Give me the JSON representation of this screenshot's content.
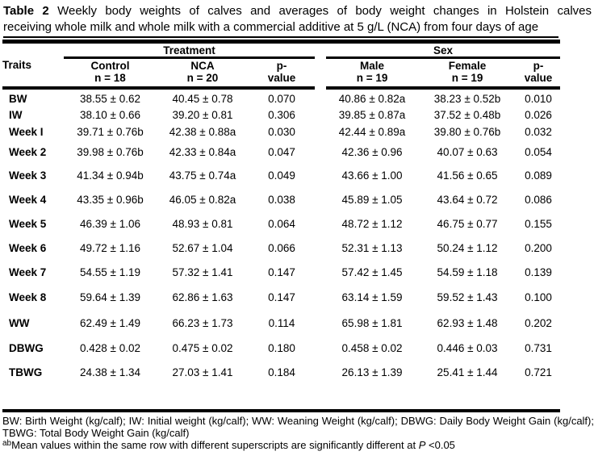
{
  "title": {
    "bold": "Table 2",
    "line1_rest": "Weekly body weights of calves and averages of body weight changes in Holstein calves",
    "line2": "receiving whole milk and whole milk with a commercial additive at 5 g/L (NCA) from four days of age"
  },
  "table": {
    "group_headers": {
      "traits": "Traits",
      "treatment": "Treatment",
      "sex": "Sex"
    },
    "columns": [
      {
        "label": "Control",
        "sub": "n = 18"
      },
      {
        "label": "NCA",
        "sub": "n = 20"
      },
      {
        "label": "p-",
        "sub": "value"
      },
      {
        "label": "Male",
        "sub": "n = 19"
      },
      {
        "label": "Female",
        "sub": "n = 19"
      },
      {
        "label": "p-",
        "sub": "value"
      }
    ],
    "rows": [
      {
        "trait": "BW",
        "control": "38.55 ± 0.62",
        "nca": "40.45 ± 0.78",
        "p1": "0.070",
        "male": "40.86 ± 0.82a",
        "female": "38.23 ± 0.52b",
        "p2": "0.010"
      },
      {
        "trait": "IW",
        "control": "38.10 ± 0.66",
        "nca": "39.20 ± 0.81",
        "p1": "0.306",
        "male": "39.85 ± 0.87a",
        "female": "37.52 ± 0.48b",
        "p2": "0.026"
      },
      {
        "trait": "Week I",
        "control": "39.71 ± 0.76b",
        "nca": "42.38 ± 0.88a",
        "p1": "0.030",
        "male": "42.44 ± 0.89a",
        "female": "39.80 ± 0.76b",
        "p2": "0.032"
      },
      {
        "trait": "Week 2",
        "control": "39.98 ± 0.76b",
        "nca": "42.33 ± 0.84a",
        "p1": "0.047",
        "male": "42.36 ± 0.96",
        "female": "40.07 ± 0.63",
        "p2": "0.054"
      },
      {
        "trait": "Week 3",
        "control": "41.34 ± 0.94b",
        "nca": "43.75 ± 0.74a",
        "p1": "0.049",
        "male": "43.66 ± 1.00",
        "female": "41.56 ± 0.65",
        "p2": "0.089"
      },
      {
        "trait": "Week 4",
        "control": "43.35 ± 0.96b",
        "nca": "46.05 ± 0.82a",
        "p1": "0.038",
        "male": "45.89 ± 1.05",
        "female": "43.64 ± 0.72",
        "p2": "0.086"
      },
      {
        "trait": "Week 5",
        "control": "46.39 ± 1.06",
        "nca": "48.93 ± 0.81",
        "p1": "0.064",
        "male": "48.72 ± 1.12",
        "female": "46.75 ± 0.77",
        "p2": "0.155"
      },
      {
        "trait": "Week 6",
        "control": "49.72 ± 1.16",
        "nca": "52.67 ± 1.04",
        "p1": "0.066",
        "male": "52.31 ± 1.13",
        "female": "50.24 ± 1.12",
        "p2": "0.200"
      },
      {
        "trait": "Week 7",
        "control": "54.55 ± 1.19",
        "nca": "57.32 ± 1.41",
        "p1": "0.147",
        "male": "57.42 ± 1.45",
        "female": "54.59 ± 1.18",
        "p2": "0.139"
      },
      {
        "trait": "Week 8",
        "control": "59.64 ± 1.39",
        "nca": "62.86 ± 1.63",
        "p1": "0.147",
        "male": "63.14 ± 1.59",
        "female": "59.52 ± 1.43",
        "p2": "0.100"
      },
      {
        "trait": "WW",
        "control": "62.49 ± 1.49",
        "nca": "66.23 ± 1.73",
        "p1": "0.114",
        "male": "65.98 ± 1.81",
        "female": "62.93 ± 1.48",
        "p2": "0.202"
      },
      {
        "trait": "DBWG",
        "control": "0.428 ± 0.02",
        "nca": "0.475 ± 0.02",
        "p1": "0.180",
        "male": "0.458 ± 0.02",
        "female": "0.446 ± 0.03",
        "p2": "0.731"
      },
      {
        "trait": "TBWG",
        "control": "24.38 ± 1.34",
        "nca": "27.03 ± 1.41",
        "p1": "0.184",
        "male": "26.13 ± 1.39",
        "female": "25.41 ± 1.44",
        "p2": "0.721"
      }
    ]
  },
  "footnotes": {
    "abbrev": "BW: Birth Weight (kg/calf); IW: Initial weight (kg/calf); WW: Weaning Weight (kg/calf); DBWG: Daily Body Weight Gain (kg/calf); TBWG: Total Body Weight Gain (kg/calf)",
    "superscript": "ab",
    "note_start": "Mean values within the same row with different superscripts are significantly different at ",
    "p_symbol": "P",
    "note_end": " <0.05"
  }
}
